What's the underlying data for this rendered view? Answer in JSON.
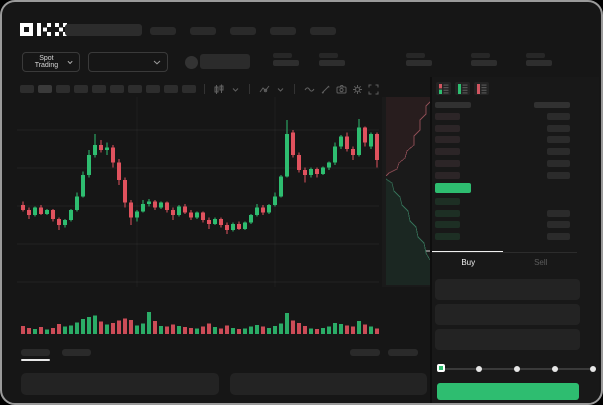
{
  "app": {
    "name": "OKX trading terminal",
    "logo_text": "OKX"
  },
  "colors": {
    "up": "#2ebd70",
    "down": "#e0525e",
    "accent_green": "#2ebd70",
    "depth_ask_line": "#b4606a",
    "depth_bid_line": "#3f8f6e",
    "bid_row_tint": "#1d2f24",
    "ask_row_tint": "#2c2527",
    "last_price_highlight": "#2ebd70",
    "window_bg": "#161616"
  },
  "topnav": {
    "nav_placeholder_count": 5
  },
  "market_bar": {
    "market_selector_label": "Spot Trading",
    "stat_group_count": 5
  },
  "chart_toolbar": {
    "timeframe_button_count": 10,
    "icons": [
      "candle-type-icon",
      "chevron-down-icon",
      "indicator-icon",
      "chevron-down-icon",
      "line-style-icon",
      "draw-icon",
      "camera-icon",
      "gear-icon",
      "fullscreen-icon"
    ]
  },
  "chart_data": {
    "type": "candlestick",
    "title": "",
    "ylim": [
      0,
      100
    ],
    "grid": "horizontal+vertical, dark",
    "legend": "none",
    "note": "OHLC on normalized 0-100 price scale, 60 candles, volume subchart, vertical depth sidebar",
    "candles": [
      [
        28,
        31,
        23,
        24
      ],
      [
        24,
        26,
        17,
        20
      ],
      [
        20,
        27,
        19,
        26
      ],
      [
        26,
        28,
        20,
        21
      ],
      [
        21,
        25,
        20,
        24
      ],
      [
        24,
        25,
        15,
        17
      ],
      [
        17,
        18,
        8,
        12
      ],
      [
        12,
        17,
        10,
        16
      ],
      [
        16,
        25,
        15,
        24
      ],
      [
        24,
        38,
        23,
        35
      ],
      [
        35,
        55,
        34,
        52
      ],
      [
        52,
        72,
        50,
        68
      ],
      [
        68,
        85,
        66,
        76
      ],
      [
        76,
        80,
        70,
        72
      ],
      [
        72,
        78,
        68,
        74
      ],
      [
        74,
        76,
        58,
        62
      ],
      [
        62,
        65,
        44,
        48
      ],
      [
        48,
        50,
        26,
        30
      ],
      [
        30,
        32,
        12,
        18
      ],
      [
        18,
        24,
        15,
        23
      ],
      [
        23,
        32,
        22,
        29
      ],
      [
        29,
        33,
        27,
        31
      ],
      [
        31,
        32,
        24,
        26
      ],
      [
        26,
        31,
        25,
        30
      ],
      [
        30,
        31,
        22,
        24
      ],
      [
        24,
        26,
        16,
        20
      ],
      [
        20,
        28,
        19,
        27
      ],
      [
        27,
        29,
        21,
        22
      ],
      [
        22,
        24,
        16,
        18
      ],
      [
        18,
        23,
        17,
        22
      ],
      [
        22,
        23,
        14,
        16
      ],
      [
        16,
        18,
        9,
        13
      ],
      [
        13,
        18,
        12,
        17
      ],
      [
        17,
        18,
        10,
        12
      ],
      [
        12,
        14,
        5,
        8
      ],
      [
        8,
        14,
        7,
        13
      ],
      [
        13,
        15,
        8,
        9
      ],
      [
        9,
        15,
        8,
        14
      ],
      [
        14,
        21,
        13,
        20
      ],
      [
        20,
        29,
        19,
        26
      ],
      [
        26,
        28,
        20,
        22
      ],
      [
        22,
        29,
        21,
        28
      ],
      [
        28,
        38,
        27,
        35
      ],
      [
        35,
        52,
        34,
        51
      ],
      [
        51,
        96,
        50,
        85
      ],
      [
        86,
        88,
        66,
        68
      ],
      [
        68,
        70,
        54,
        56
      ],
      [
        56,
        58,
        46,
        52
      ],
      [
        52,
        58,
        50,
        57
      ],
      [
        57,
        58,
        50,
        53
      ],
      [
        53,
        59,
        52,
        58
      ],
      [
        58,
        63,
        56,
        62
      ],
      [
        62,
        78,
        60,
        75
      ],
      [
        75,
        84,
        73,
        83
      ],
      [
        83,
        86,
        71,
        73
      ],
      [
        73,
        75,
        64,
        68
      ],
      [
        68,
        97,
        67,
        90
      ],
      [
        90,
        91,
        75,
        78
      ],
      [
        75,
        86,
        73,
        85
      ],
      [
        85,
        86,
        58,
        64
      ]
    ],
    "volumes": [
      30,
      24,
      20,
      26,
      18,
      24,
      38,
      28,
      32,
      44,
      58,
      66,
      72,
      48,
      36,
      42,
      52,
      60,
      54,
      32,
      40,
      85,
      50,
      30,
      28,
      36,
      30,
      26,
      24,
      22,
      28,
      40,
      26,
      22,
      32,
      24,
      20,
      22,
      28,
      34,
      28,
      24,
      30,
      40,
      80,
      52,
      42,
      30,
      22,
      20,
      24,
      28,
      42,
      38,
      32,
      28,
      50,
      36,
      28,
      22
    ],
    "depth": {
      "asks_line": [
        [
          369,
          79
        ],
        [
          372,
          76
        ],
        [
          380,
          72
        ],
        [
          382,
          66
        ],
        [
          388,
          61
        ],
        [
          390,
          54
        ],
        [
          397,
          48
        ],
        [
          397,
          39
        ],
        [
          403,
          33
        ],
        [
          403,
          23
        ],
        [
          409,
          17
        ],
        [
          409,
          9
        ],
        [
          415,
          3
        ]
      ],
      "bids_line": [
        [
          369,
          82
        ],
        [
          375,
          86
        ],
        [
          377,
          94
        ],
        [
          383,
          100
        ],
        [
          385,
          108
        ],
        [
          391,
          114
        ],
        [
          393,
          124
        ],
        [
          399,
          130
        ],
        [
          401,
          140
        ],
        [
          407,
          146
        ],
        [
          409,
          156
        ],
        [
          413,
          163
        ]
      ]
    }
  },
  "orderbook": {
    "view_icons": [
      "book-combined-icon",
      "book-bids-icon",
      "book-asks-icon"
    ],
    "ask_row_count": 6,
    "bid_row_count": 4,
    "has_last_price_highlight": true
  },
  "trade_panel": {
    "tabs": [
      {
        "label": "Buy",
        "active": true
      },
      {
        "label": "Sell",
        "active": false
      }
    ],
    "input_count": 3,
    "slider_steps": 5,
    "slider_value_index": 0
  },
  "bottom_bar": {
    "tab_count": 2,
    "right_placeholder_count": 2,
    "panel_count": 2
  }
}
